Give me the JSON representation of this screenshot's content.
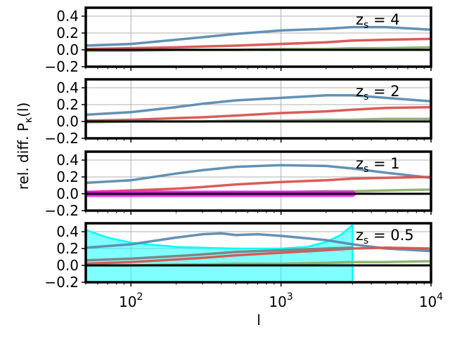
{
  "chart_data": {
    "type": "line",
    "x_scale": "log",
    "xlim": [
      50,
      10000
    ],
    "ylim": [
      -0.2,
      0.5
    ],
    "grid": true,
    "xlabel": "l",
    "ylabel": "rel. diff. P",
    "ylabel_subscript": "κ",
    "ylabel_suffix": "(l)",
    "x_ticks": [
      100,
      1000,
      10000
    ],
    "x_tick_labels": [
      {
        "base": "10",
        "exp": "2"
      },
      {
        "base": "10",
        "exp": "3"
      },
      {
        "base": "10",
        "exp": "4"
      }
    ],
    "y_ticks": [
      -0.2,
      0.0,
      0.2,
      0.4
    ],
    "y_tick_labels": [
      "−0.2",
      "0.0",
      "0.2",
      "0.4"
    ],
    "colors": {
      "blue": "#5b8bb0",
      "red": "#d9534f",
      "green": "#8cb06a",
      "gray": "#808080",
      "magenta": "#ff00ff",
      "cyan": "#00ffff",
      "zero_line": "#000000"
    },
    "panels": [
      {
        "label_main": "z",
        "label_sub": "s",
        "label_value": " = 4",
        "series": [
          {
            "color_key": "blue",
            "x": [
              50,
              100,
              200,
              300,
              500,
              1000,
              2000,
              3000,
              5000,
              10000
            ],
            "y": [
              0.05,
              0.07,
              0.12,
              0.15,
              0.19,
              0.23,
              0.25,
              0.27,
              0.27,
              0.24
            ]
          },
          {
            "color_key": "red",
            "x": [
              50,
              100,
              200,
              300,
              500,
              1000,
              2000,
              3000,
              5000,
              10000
            ],
            "y": [
              0.01,
              0.02,
              0.03,
              0.04,
              0.05,
              0.07,
              0.09,
              0.11,
              0.12,
              0.13
            ]
          },
          {
            "color_key": "green",
            "x": [
              50,
              100,
              200,
              300,
              500,
              1000,
              2000,
              3000,
              5000,
              10000
            ],
            "y": [
              -0.01,
              -0.01,
              0.0,
              0.0,
              0.0,
              0.01,
              0.01,
              0.02,
              0.02,
              0.03
            ]
          }
        ]
      },
      {
        "label_main": "z",
        "label_sub": "s",
        "label_value": " = 2",
        "series": [
          {
            "color_key": "blue",
            "x": [
              50,
              100,
              200,
              300,
              500,
              1000,
              2000,
              3000,
              5000,
              10000
            ],
            "y": [
              0.08,
              0.11,
              0.17,
              0.21,
              0.25,
              0.28,
              0.31,
              0.31,
              0.28,
              0.24
            ]
          },
          {
            "color_key": "red",
            "x": [
              50,
              100,
              200,
              300,
              500,
              1000,
              2000,
              3000,
              5000,
              10000
            ],
            "y": [
              0.01,
              0.02,
              0.04,
              0.05,
              0.07,
              0.1,
              0.12,
              0.14,
              0.16,
              0.17
            ]
          },
          {
            "color_key": "green",
            "x": [
              50,
              100,
              200,
              300,
              500,
              1000,
              2000,
              3000,
              5000,
              10000
            ],
            "y": [
              -0.01,
              0.0,
              0.0,
              0.0,
              0.01,
              0.01,
              0.02,
              0.02,
              0.03,
              0.03
            ]
          }
        ]
      },
      {
        "label_main": "z",
        "label_sub": "s",
        "label_value": " = 1",
        "series": [
          {
            "color_key": "blue",
            "x": [
              50,
              100,
              200,
              300,
              500,
              1000,
              2000,
              3000,
              5000,
              10000
            ],
            "y": [
              0.13,
              0.16,
              0.24,
              0.28,
              0.32,
              0.34,
              0.33,
              0.3,
              0.25,
              0.19
            ]
          },
          {
            "color_key": "red",
            "x": [
              50,
              100,
              200,
              300,
              500,
              1000,
              2000,
              3000,
              5000,
              10000
            ],
            "y": [
              0.02,
              0.04,
              0.06,
              0.08,
              0.11,
              0.14,
              0.16,
              0.18,
              0.19,
              0.2
            ]
          },
          {
            "color_key": "green",
            "x": [
              50,
              100,
              200,
              300,
              500,
              1000,
              2000,
              3000,
              5000,
              10000
            ],
            "y": [
              0.0,
              0.0,
              0.01,
              0.01,
              0.02,
              0.02,
              0.03,
              0.03,
              0.04,
              0.05
            ]
          },
          {
            "color_key": "magenta",
            "x": [
              50,
              100,
              200,
              500,
              1000,
              2000,
              3000
            ],
            "y": [
              0.0,
              0.0,
              0.0,
              0.0,
              0.0,
              0.0,
              0.0
            ]
          }
        ]
      },
      {
        "label_main": "z",
        "label_sub": "s",
        "label_value": " = 0.5",
        "band": {
          "color_key": "cyan",
          "x": [
            50,
            70,
            100,
            150,
            200,
            300,
            500,
            700,
            1000,
            1500,
            2000,
            2500,
            3000
          ],
          "y_upper": [
            0.42,
            0.33,
            0.27,
            0.24,
            0.22,
            0.21,
            0.2,
            0.2,
            0.2,
            0.22,
            0.28,
            0.36,
            0.48
          ],
          "y_lower": [
            -0.2,
            -0.2,
            -0.2,
            -0.2,
            -0.2,
            -0.2,
            -0.2,
            -0.2,
            -0.2,
            -0.2,
            -0.2,
            -0.2,
            -0.2
          ]
        },
        "series": [
          {
            "color_key": "blue",
            "x": [
              50,
              100,
              200,
              300,
              400,
              500,
              700,
              1000,
              2000,
              3000,
              5000,
              10000
            ],
            "y": [
              0.21,
              0.25,
              0.33,
              0.37,
              0.38,
              0.36,
              0.37,
              0.35,
              0.3,
              0.25,
              0.2,
              0.17
            ]
          },
          {
            "color_key": "red",
            "x": [
              50,
              100,
              200,
              300,
              500,
              1000,
              2000,
              3000,
              5000,
              10000
            ],
            "y": [
              0.02,
              0.04,
              0.07,
              0.09,
              0.12,
              0.15,
              0.18,
              0.2,
              0.21,
              0.2
            ]
          },
          {
            "color_key": "gray",
            "x": [
              50,
              100,
              200,
              300,
              500,
              1000,
              2000,
              3000
            ],
            "y": [
              0.06,
              0.08,
              0.11,
              0.13,
              0.16,
              0.18,
              0.2,
              0.21
            ]
          },
          {
            "color_key": "green",
            "x": [
              50,
              100,
              200,
              300,
              500,
              1000,
              2000,
              3000,
              5000,
              10000
            ],
            "y": [
              0.0,
              0.0,
              0.01,
              0.01,
              0.02,
              0.02,
              0.03,
              0.04,
              0.04,
              0.05
            ]
          }
        ]
      }
    ]
  }
}
